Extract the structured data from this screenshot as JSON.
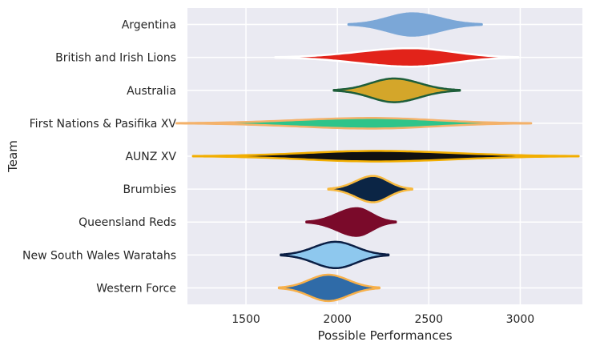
{
  "chart_data": {
    "type": "violin",
    "orientation": "horizontal",
    "xlabel": "Possible Performances",
    "ylabel": "Team",
    "xlim": [
      1180,
      3340
    ],
    "xticks": [
      1500,
      2000,
      2500,
      3000
    ],
    "grid": true,
    "background": "#EAEAF2",
    "gridline_color": "#FFFFFF",
    "series": [
      {
        "name": "Argentina",
        "fill": "#7BA7D7",
        "edge": "#7BA7D7",
        "min": 2060,
        "peak": 2410,
        "max": 2790,
        "halfWidth": 0.34
      },
      {
        "name": "British and Irish Lions",
        "fill": "#E2231A",
        "edge": "#FFFFFF",
        "min": 1660,
        "peak": 2400,
        "max": 2990,
        "halfWidth": 0.28
      },
      {
        "name": "Australia",
        "fill": "#D4A62A",
        "edge": "#1E5E3A",
        "min": 1980,
        "peak": 2310,
        "max": 2670,
        "halfWidth": 0.36
      },
      {
        "name": "First Nations & Pasifika XV",
        "fill": "#2EC48A",
        "edge": "#F4B26B",
        "min": 1120,
        "peak": 2190,
        "max": 3060,
        "halfWidth": 0.16
      },
      {
        "name": "AUNZ XV",
        "fill": "#111111",
        "edge": "#F2AE00",
        "min": 1210,
        "peak": 2210,
        "max": 3320,
        "halfWidth": 0.16
      },
      {
        "name": "Brumbies",
        "fill": "#0B2545",
        "edge": "#F7B93E",
        "min": 1950,
        "peak": 2195,
        "max": 2410,
        "halfWidth": 0.4
      },
      {
        "name": "Queensland Reds",
        "fill": "#7A0A2A",
        "edge": "#7A0A2A",
        "min": 1830,
        "peak": 2105,
        "max": 2320,
        "halfWidth": 0.42
      },
      {
        "name": "New South Wales Waratahs",
        "fill": "#8EC8EE",
        "edge": "#0B1F45",
        "min": 1690,
        "peak": 1990,
        "max": 2280,
        "halfWidth": 0.4
      },
      {
        "name": "Western Force",
        "fill": "#2F6BA8",
        "edge": "#F7B04A",
        "min": 1680,
        "peak": 1950,
        "max": 2230,
        "halfWidth": 0.4
      }
    ]
  }
}
